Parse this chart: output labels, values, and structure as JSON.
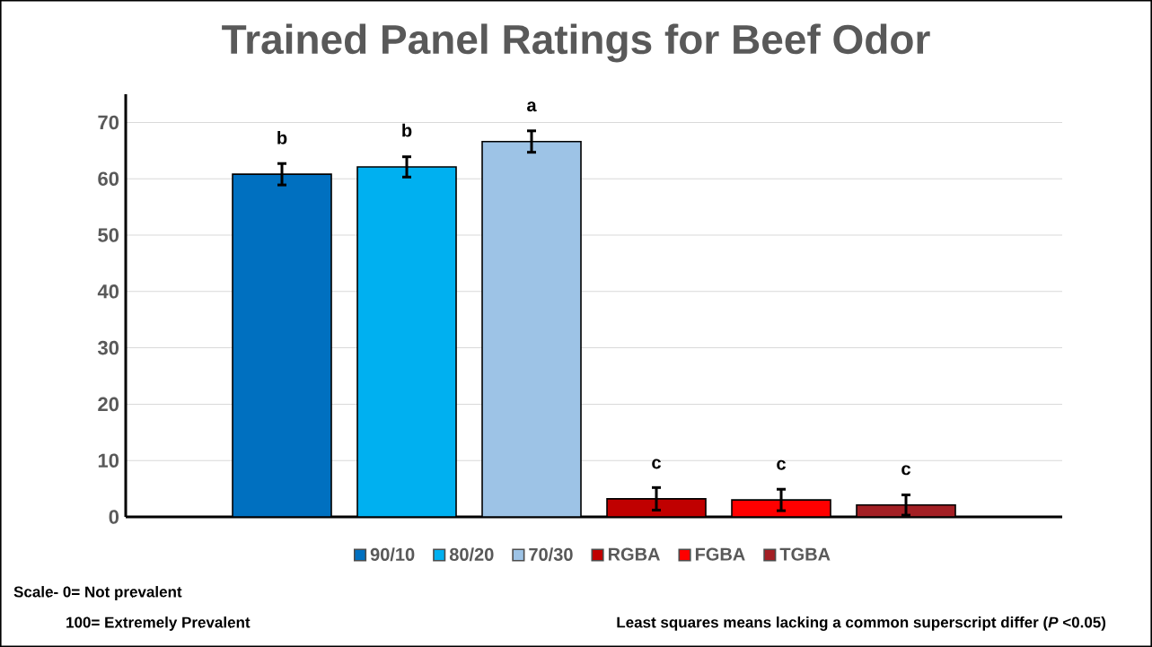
{
  "chart_data": {
    "type": "bar",
    "title": "Trained Panel Ratings for Beef Odor",
    "categories": [
      null
    ],
    "series": [
      {
        "name": "90/10",
        "color": "#0070c0",
        "values": [
          60.8
        ],
        "errors": [
          1.9
        ],
        "value_labels": [
          "b"
        ]
      },
      {
        "name": "80/20",
        "color": "#00b0f0",
        "values": [
          62.1
        ],
        "errors": [
          1.8
        ],
        "value_labels": [
          "b"
        ]
      },
      {
        "name": "70/30",
        "color": "#9dc3e6",
        "values": [
          66.6
        ],
        "errors": [
          1.9
        ],
        "value_labels": [
          "a"
        ]
      },
      {
        "name": "RGBA",
        "color": "#c00000",
        "values": [
          3.2
        ],
        "errors": [
          2.0
        ],
        "value_labels": [
          "c"
        ]
      },
      {
        "name": "FGBA",
        "color": "#ff0000",
        "values": [
          3.0
        ],
        "errors": [
          1.9
        ],
        "value_labels": [
          "c"
        ]
      },
      {
        "name": "TGBA",
        "color": "#a31f24",
        "values": [
          2.1
        ],
        "errors": [
          1.8
        ],
        "value_labels": [
          "c"
        ]
      }
    ],
    "ylim": [
      0,
      75
    ],
    "yticks": [
      0,
      10,
      20,
      30,
      40,
      50,
      60,
      70
    ],
    "grid": "y",
    "legend": "bottom",
    "annotations": [
      "Scale- 0= Not prevalent",
      "100= Extremely Prevalent",
      "Least squares means lacking a common superscript differ (*P* <0.05)"
    ]
  }
}
